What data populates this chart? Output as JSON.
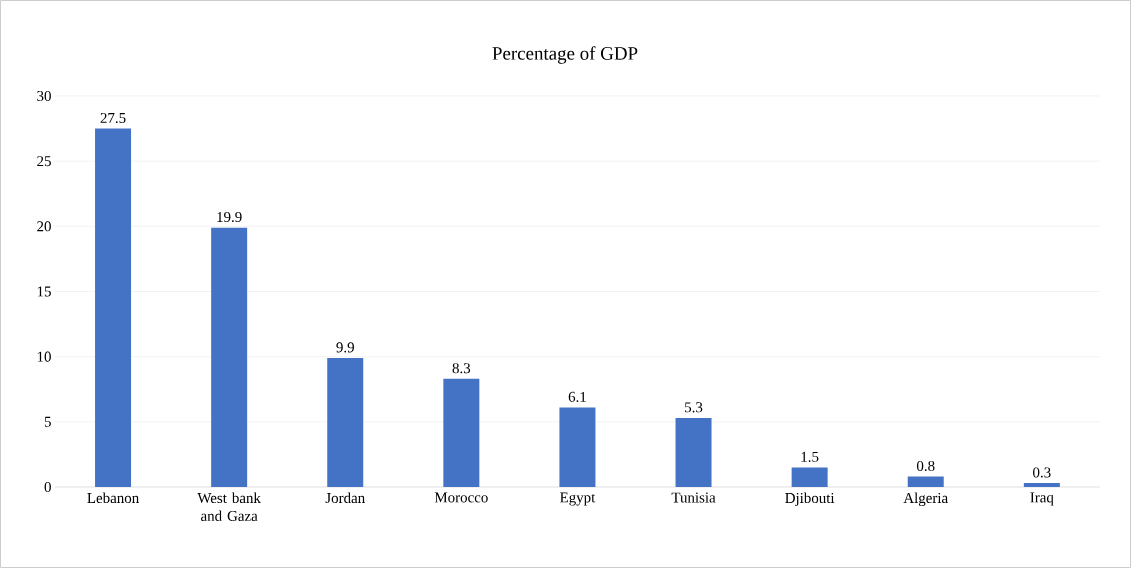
{
  "chart_data": {
    "type": "bar",
    "title": "Percentage of GDP",
    "categories": [
      "Lebanon",
      "West bank and Gaza",
      "Jordan",
      "Morocco",
      "Egypt",
      "Tunisia",
      "Djibouti",
      "Algeria",
      "Iraq"
    ],
    "values": [
      27.5,
      19.9,
      9.9,
      8.3,
      6.1,
      5.3,
      1.5,
      0.8,
      0.3
    ],
    "color": "#4472c4",
    "ylim": [
      0,
      30
    ],
    "yticks": [
      0,
      5,
      10,
      15,
      20,
      25,
      30
    ],
    "grid": "y",
    "data_labels": true
  }
}
